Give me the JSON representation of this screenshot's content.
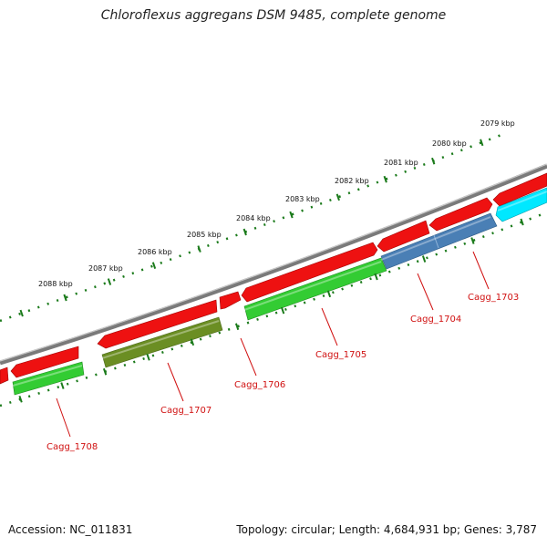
{
  "title": "Chloroflexus aggregans DSM 9485, complete genome",
  "footer": {
    "accession": "Accession: NC_011831",
    "topology": "Topology: circular; Length: 4,684,931 bp; Genes: 3,787"
  },
  "colors": {
    "backbone": "#7a7a7a",
    "tick": "#1a7a1a",
    "label_line": "#d01010",
    "label_text": "#d01010"
  },
  "kbp_labels": [
    "2079 kbp",
    "2080 kbp",
    "2081 kbp",
    "2082 kbp",
    "2083 kbp",
    "2084 kbp",
    "2085 kbp",
    "2086 kbp",
    "2087 kbp",
    "2088 kbp"
  ],
  "genes": [
    {
      "label": "Cagg_1703",
      "color": "#00e8ff"
    },
    {
      "label": "Cagg_1704",
      "color": "#4a7fb5"
    },
    {
      "label": "Cagg_1705",
      "color": "#33cc33"
    },
    {
      "label": "Cagg_1706",
      "color": "#ee1111"
    },
    {
      "label": "Cagg_1707",
      "color": "#6b8e23"
    },
    {
      "label": "Cagg_1708",
      "color": "#33cc33"
    }
  ],
  "features": [
    {
      "strand": "forward",
      "color": "#ee1111",
      "label": ""
    },
    {
      "strand": "forward",
      "color": "#ee1111",
      "label": ""
    },
    {
      "strand": "forward",
      "color": "#ee1111",
      "label": ""
    },
    {
      "strand": "forward",
      "color": "#ee1111",
      "label": ""
    },
    {
      "strand": "forward",
      "color": "#ee1111",
      "label": ""
    },
    {
      "strand": "forward",
      "color": "#ee1111",
      "label": ""
    },
    {
      "strand": "forward",
      "color": "#ee1111",
      "label": ""
    },
    {
      "strand": "forward",
      "color": "#ee1111",
      "label": ""
    },
    {
      "strand": "reverse",
      "color": "#00e8ff",
      "label": "Cagg_1703"
    },
    {
      "strand": "reverse",
      "color": "#4a7fb5",
      "label": "Cagg_1704"
    },
    {
      "strand": "reverse",
      "color": "#33cc33",
      "label": "Cagg_1705"
    },
    {
      "strand": "reverse",
      "color": "#6b8e23",
      "label": "Cagg_1707"
    },
    {
      "strand": "reverse",
      "color": "#33cc33",
      "label": "Cagg_1708"
    }
  ]
}
